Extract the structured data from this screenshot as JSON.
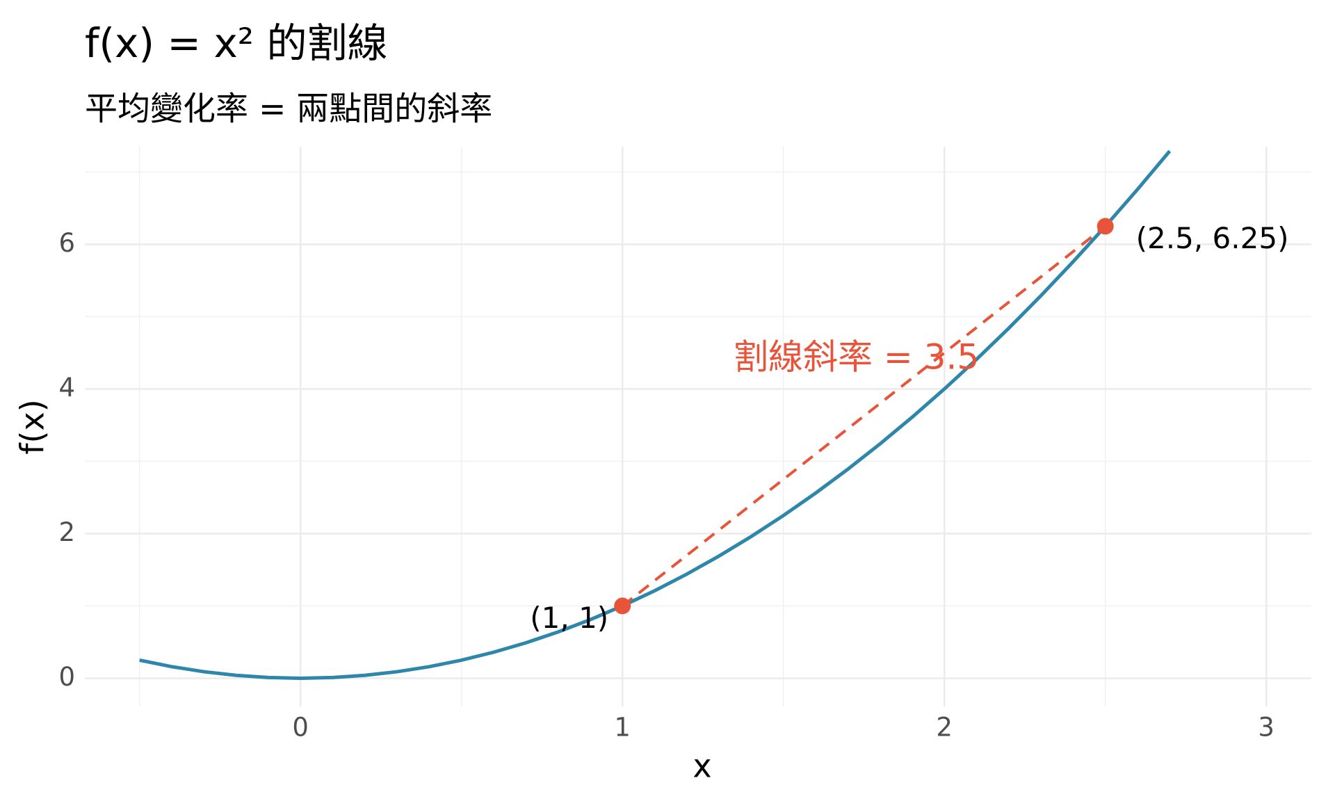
{
  "chart_data": {
    "type": "line",
    "title": "f(x) = x² 的割線",
    "subtitle": "平均變化率 = 兩點間的斜率",
    "x_label": "x",
    "y_label": "f(x)",
    "x": [
      -0.5,
      -0.4,
      -0.3,
      -0.2,
      -0.1,
      0,
      0.1,
      0.2,
      0.3,
      0.4,
      0.5,
      0.6,
      0.7,
      0.8,
      0.9,
      1,
      1.1,
      1.2,
      1.3,
      1.4,
      1.5,
      1.6,
      1.7,
      1.8,
      1.9,
      2,
      2.1,
      2.2,
      2.3,
      2.4,
      2.5,
      2.6,
      2.7
    ],
    "series": [
      {
        "color": "#2e86ab",
        "values": [
          0.25,
          0.16,
          0.09,
          0.04,
          0.01,
          0,
          0.01,
          0.04,
          0.09,
          0.16,
          0.25,
          0.36,
          0.49,
          0.64,
          0.81,
          1,
          1.21,
          1.44,
          1.69,
          1.96,
          2.25,
          2.56,
          2.89,
          3.24,
          3.61,
          4,
          4.41,
          4.84,
          5.29,
          5.76,
          6.25,
          6.76,
          7.29
        ]
      }
    ],
    "secant": {
      "x": [
        1,
        2.5
      ],
      "y": [
        1,
        6.25
      ],
      "color": "#e8543a",
      "dashed": true
    },
    "points": {
      "x": [
        1,
        2.5
      ],
      "y": [
        1,
        6.25
      ],
      "labels": [
        "(1, 1)",
        "(2.5, 6.25)"
      ],
      "color": "#e8543a"
    },
    "annotation": {
      "text": "割線斜率 = 3.5",
      "color": "#e8543a"
    },
    "xlim": [
      -0.67,
      3.14
    ],
    "ylim": [
      -0.39,
      7.35
    ],
    "xticks": [
      0,
      1,
      2,
      3
    ],
    "yticks": [
      0,
      2,
      4,
      6
    ],
    "x_minor_ticks": [
      -0.5,
      0.5,
      1.5,
      2.5
    ],
    "y_minor_ticks": [
      1,
      3,
      5,
      7
    ],
    "grid": true
  }
}
